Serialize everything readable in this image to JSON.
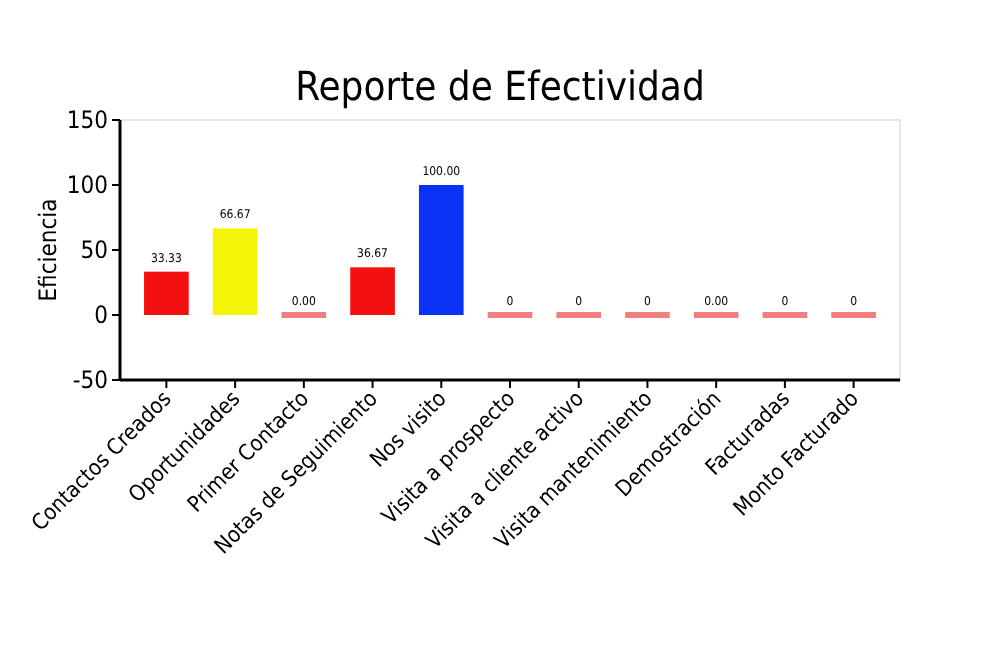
{
  "chart_data": {
    "type": "bar",
    "title": "Reporte de Efectividad",
    "ylabel": "Eficiencia",
    "categories": [
      "Contactos Creados",
      "Oportunidades",
      "Primer Contacto",
      "Notas de Seguimiento",
      "Nos visito",
      "Visita a prospecto",
      "Visita a cliente activo",
      "Visita mantenimiento",
      "Demostración",
      "Facturadas",
      "Monto Facturado"
    ],
    "values": [
      33.33,
      66.67,
      0,
      36.67,
      100,
      0,
      0,
      0,
      0,
      0,
      0
    ],
    "colors": [
      "#f21010",
      "#f5f50a",
      "#f08080",
      "#f21010",
      "#0a32f5",
      "#f08080",
      "#f08080",
      "#f08080",
      "#f08080",
      "#f08080",
      "#f08080"
    ],
    "value_labels": [
      "33.33",
      "66.67",
      "0.00",
      "36.67",
      "100.00",
      "0",
      "0",
      "0",
      "0.00",
      "0",
      "0"
    ],
    "ylim": [
      -50,
      150
    ],
    "yticks": [
      -50,
      0,
      50,
      100,
      150
    ],
    "grid": false
  }
}
